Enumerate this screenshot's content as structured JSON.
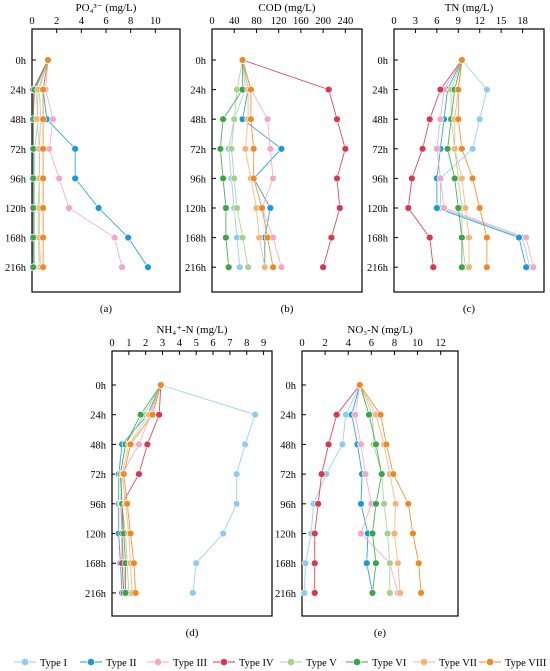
{
  "rows": [
    "0h",
    "24h",
    "48h",
    "72h",
    "96h",
    "120h",
    "168h",
    "216h"
  ],
  "series_colors": [
    "#8ecbee",
    "#1a9ad6",
    "#f2a7c3",
    "#d9374b",
    "#a8d08d",
    "#3aa54a",
    "#f4b479",
    "#ee8a25"
  ],
  "chart_data": [
    {
      "type": "line",
      "orientation": "vertical-profile",
      "title": "PO₄³⁻ (mg/L)",
      "xlim": [
        0,
        12
      ],
      "xticks": [
        0,
        2,
        4,
        6,
        8,
        10
      ],
      "panel_label": "(a)",
      "rows": [
        "0h",
        "24h",
        "48h",
        "72h",
        "96h",
        "120h",
        "168h",
        "216h"
      ],
      "series": [
        {
          "name": "Type I",
          "values": [
            1.3,
            0.3,
            0.5,
            0.2,
            0.2,
            0.2,
            0.2,
            0.2
          ]
        },
        {
          "name": "Type II",
          "values": [
            1.3,
            0.9,
            1.2,
            3.5,
            3.5,
            5.4,
            7.8,
            9.4
          ]
        },
        {
          "name": "Type III",
          "values": [
            1.3,
            1.1,
            1.7,
            1.4,
            2.2,
            3.0,
            6.7,
            7.3
          ]
        },
        {
          "name": "Type IV",
          "values": [
            1.3,
            0.1,
            0.1,
            0.1,
            0.1,
            0.1,
            0.1,
            0.1
          ]
        },
        {
          "name": "Type V",
          "values": [
            1.3,
            0.6,
            0.7,
            0.6,
            0.6,
            0.5,
            0.5,
            0.6
          ]
        },
        {
          "name": "Type VI",
          "values": [
            1.3,
            0.2,
            0.1,
            0.1,
            0.1,
            0.1,
            0.1,
            0.1
          ]
        },
        {
          "name": "Type VII",
          "values": [
            1.3,
            0.5,
            0.4,
            0.6,
            0.6,
            0.6,
            0.6,
            0.7
          ]
        },
        {
          "name": "Type VIII",
          "values": [
            1.3,
            0.9,
            0.9,
            0.9,
            0.9,
            0.9,
            0.9,
            0.9
          ]
        }
      ]
    },
    {
      "type": "line",
      "orientation": "vertical-profile",
      "title": "COD (mg/L)",
      "xlim": [
        0,
        270
      ],
      "xticks": [
        0,
        40,
        80,
        120,
        160,
        200,
        240
      ],
      "panel_label": "(b)",
      "rows": [
        "0h",
        "24h",
        "48h",
        "72h",
        "96h",
        "120h",
        "168h",
        "216h"
      ],
      "series": [
        {
          "name": "Type I",
          "values": [
            55,
            60,
            40,
            30,
            35,
            40,
            45,
            50
          ]
        },
        {
          "name": "Type II",
          "values": [
            55,
            65,
            55,
            125,
            75,
            105,
            95,
            95
          ]
        },
        {
          "name": "Type III",
          "values": [
            55,
            70,
            100,
            105,
            110,
            90,
            110,
            125
          ]
        },
        {
          "name": "Type IV",
          "values": [
            55,
            210,
            225,
            240,
            225,
            230,
            215,
            200
          ]
        },
        {
          "name": "Type V",
          "values": [
            55,
            45,
            40,
            35,
            40,
            45,
            55,
            65
          ]
        },
        {
          "name": "Type VI",
          "values": [
            55,
            55,
            20,
            15,
            20,
            25,
            25,
            30
          ]
        },
        {
          "name": "Type VII",
          "values": [
            55,
            65,
            65,
            60,
            70,
            80,
            85,
            95
          ]
        },
        {
          "name": "Type VIII",
          "values": [
            55,
            70,
            70,
            75,
            75,
            90,
            100,
            110
          ]
        }
      ]
    },
    {
      "type": "line",
      "orientation": "vertical-profile",
      "title": "TN (mg/L)",
      "xlim": [
        0,
        21
      ],
      "xticks": [
        0,
        3,
        6,
        9,
        12,
        15,
        18
      ],
      "panel_label": "(c)",
      "rows": [
        "0h",
        "24h",
        "48h",
        "72h",
        "96h",
        "120h",
        "168h",
        "216h"
      ],
      "series": [
        {
          "name": "Type I",
          "values": [
            9.5,
            13.0,
            12.0,
            11.0,
            6.5,
            6.5,
            18.0,
            19.0
          ]
        },
        {
          "name": "Type II",
          "values": [
            9.5,
            7.5,
            7.0,
            6.5,
            6.0,
            6.0,
            17.5,
            18.5
          ]
        },
        {
          "name": "Type III",
          "values": [
            9.5,
            7.0,
            6.5,
            6.0,
            6.5,
            7.0,
            18.5,
            19.5
          ]
        },
        {
          "name": "Type IV",
          "values": [
            9.5,
            6.5,
            5.0,
            4.0,
            2.5,
            2.0,
            5.0,
            5.5
          ]
        },
        {
          "name": "Type V",
          "values": [
            9.5,
            8.0,
            8.0,
            8.5,
            9.0,
            9.5,
            9.5,
            10.0
          ]
        },
        {
          "name": "Type VI",
          "values": [
            9.5,
            8.5,
            8.0,
            7.5,
            8.5,
            9.0,
            9.5,
            9.5
          ]
        },
        {
          "name": "Type VII",
          "values": [
            9.5,
            9.0,
            8.5,
            8.5,
            9.5,
            10.0,
            10.5,
            10.5
          ]
        },
        {
          "name": "Type VIII",
          "values": [
            9.5,
            9.0,
            9.0,
            9.5,
            11.0,
            12.0,
            13.0,
            13.0
          ]
        }
      ]
    },
    {
      "type": "line",
      "orientation": "vertical-profile",
      "title": "NH₄⁺-N (mg/L)",
      "xlim": [
        0,
        9.5
      ],
      "xticks": [
        0,
        1,
        2,
        3,
        4,
        5,
        6,
        7,
        8,
        9
      ],
      "panel_label": "(d)",
      "rows": [
        "0h",
        "24h",
        "48h",
        "72h",
        "96h",
        "120h",
        "168h",
        "216h"
      ],
      "series": [
        {
          "name": "Type I",
          "values": [
            2.9,
            8.5,
            7.9,
            7.4,
            7.4,
            6.6,
            5.0,
            4.8
          ]
        },
        {
          "name": "Type II",
          "values": [
            2.9,
            2.1,
            0.6,
            0.4,
            0.4,
            0.4,
            0.5,
            0.6
          ]
        },
        {
          "name": "Type III",
          "values": [
            2.9,
            2.3,
            1.6,
            0.6,
            0.5,
            0.6,
            0.7,
            0.8
          ]
        },
        {
          "name": "Type IV",
          "values": [
            2.9,
            2.8,
            2.1,
            1.6,
            0.6,
            0.6,
            0.6,
            0.7
          ]
        },
        {
          "name": "Type V",
          "values": [
            2.9,
            1.9,
            0.8,
            0.5,
            0.6,
            0.8,
            0.9,
            1.0
          ]
        },
        {
          "name": "Type VI",
          "values": [
            2.9,
            1.7,
            0.8,
            0.5,
            0.6,
            0.7,
            0.8,
            0.8
          ]
        },
        {
          "name": "Type VII",
          "values": [
            2.9,
            2.2,
            1.0,
            0.6,
            0.8,
            1.0,
            1.1,
            1.2
          ]
        },
        {
          "name": "Type VIII",
          "values": [
            2.9,
            2.4,
            1.1,
            0.7,
            0.9,
            1.1,
            1.3,
            1.4
          ]
        }
      ]
    },
    {
      "type": "line",
      "orientation": "vertical-profile",
      "title": "NO₃-N (mg/L)",
      "xlim": [
        0,
        13.5
      ],
      "xticks": [
        0,
        2,
        4,
        6,
        8,
        10,
        12
      ],
      "panel_label": "(e)",
      "rows": [
        "0h",
        "24h",
        "48h",
        "72h",
        "96h",
        "120h",
        "168h",
        "216h"
      ],
      "series": [
        {
          "name": "Type I",
          "values": [
            5.0,
            3.8,
            3.5,
            2.1,
            1.0,
            0.8,
            0.3,
            0.2
          ]
        },
        {
          "name": "Type II",
          "values": [
            5.0,
            4.3,
            4.8,
            5.2,
            5.1,
            5.7,
            5.6,
            6.1
          ]
        },
        {
          "name": "Type III",
          "values": [
            5.0,
            4.6,
            5.1,
            5.5,
            6.0,
            5.1,
            7.6,
            8.3
          ]
        },
        {
          "name": "Type IV",
          "values": [
            5.0,
            3.0,
            2.3,
            1.7,
            1.4,
            1.1,
            1.1,
            1.1
          ]
        },
        {
          "name": "Type V",
          "values": [
            5.0,
            6.1,
            6.2,
            6.9,
            7.1,
            7.4,
            7.6,
            7.6
          ]
        },
        {
          "name": "Type VI",
          "values": [
            5.0,
            5.8,
            6.4,
            6.9,
            6.4,
            6.1,
            6.4,
            6.1
          ]
        },
        {
          "name": "Type VII",
          "values": [
            5.0,
            6.4,
            7.1,
            7.6,
            8.1,
            8.0,
            8.3,
            8.5
          ]
        },
        {
          "name": "Type VIII",
          "values": [
            5.0,
            6.8,
            7.3,
            7.9,
            9.2,
            9.6,
            10.1,
            10.3
          ]
        }
      ]
    }
  ],
  "legend": [
    "Type I",
    "Type II",
    "Type III",
    "Type IV",
    "Type V",
    "Type VI",
    "Type VII",
    "Type VIII"
  ]
}
